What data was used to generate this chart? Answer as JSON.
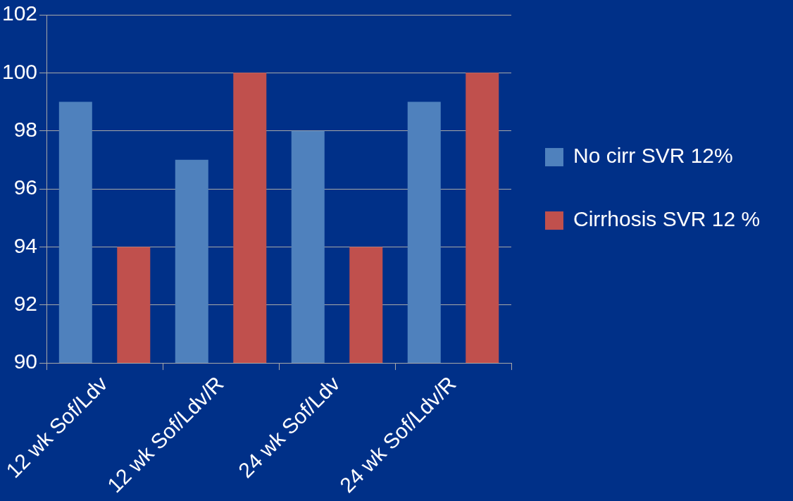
{
  "chart_data": {
    "type": "bar",
    "categories": [
      "12 wk Sof/Ldv",
      "12 wk Sof/Ldv/R",
      "24 wk Sof/Ldv",
      "24 wk Sof/Ldv/R"
    ],
    "series": [
      {
        "name": "No cirr SVR 12%",
        "color": "#4f81bd",
        "values": [
          99,
          97,
          98,
          99
        ]
      },
      {
        "name": "Cirrhosis SVR 12 %",
        "color": "#c0504d",
        "values": [
          94,
          100,
          94,
          100
        ]
      }
    ],
    "ylim": [
      90,
      102
    ],
    "yticks": [
      90,
      92,
      94,
      96,
      98,
      100,
      102
    ],
    "grid": "y",
    "legend": "right"
  }
}
